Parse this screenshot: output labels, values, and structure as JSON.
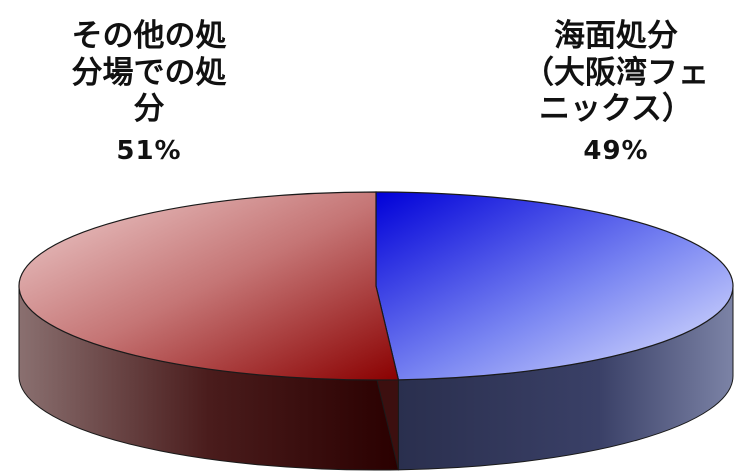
{
  "chart_data": {
    "type": "pie",
    "three_d": true,
    "slices": [
      {
        "label_lines": [
          "海面処分",
          "（大阪湾フェ",
          "ニックス）"
        ],
        "value": 49,
        "value_label": "49%",
        "color": "#1a1aff"
      },
      {
        "label_lines": [
          "その他の処",
          "分場での処",
          "分"
        ],
        "value": 51,
        "value_label": "51%",
        "color": "#c05050"
      }
    ],
    "legend": "none"
  }
}
